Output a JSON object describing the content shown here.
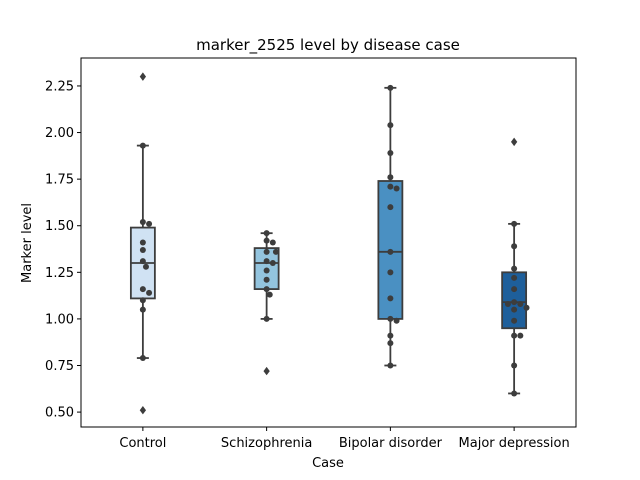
{
  "chart_data": {
    "type": "box",
    "title": "marker_2525 level by disease case",
    "xlabel": "Case",
    "ylabel": "Marker level",
    "ylim": [
      0.42,
      2.4
    ],
    "yticks": [
      "0.50",
      "0.75",
      "1.00",
      "1.25",
      "1.50",
      "1.75",
      "2.00",
      "2.25"
    ],
    "grid": false,
    "categories": [
      "Control",
      "Schizophrenia",
      "Bipolar disorder",
      "Major depression"
    ],
    "colors": [
      "#d0e2f3",
      "#93c4de",
      "#4a90c2",
      "#1e5f9b"
    ],
    "boxes": [
      {
        "q1": 1.11,
        "median": 1.3,
        "q3": 1.49,
        "whisker_low": 0.79,
        "whisker_high": 1.93,
        "outliers": [
          2.3,
          0.51
        ]
      },
      {
        "q1": 1.16,
        "median": 1.3,
        "q3": 1.38,
        "whisker_low": 1.0,
        "whisker_high": 1.46,
        "outliers": [
          0.72
        ]
      },
      {
        "q1": 1.0,
        "median": 1.36,
        "q3": 1.74,
        "whisker_low": 0.75,
        "whisker_high": 2.24,
        "outliers": []
      },
      {
        "q1": 0.95,
        "median": 1.09,
        "q3": 1.25,
        "whisker_low": 0.6,
        "whisker_high": 1.51,
        "outliers": [
          1.95
        ]
      }
    ],
    "points": [
      [
        1.93,
        1.52,
        1.51,
        1.41,
        1.37,
        1.31,
        1.28,
        1.16,
        1.14,
        1.1,
        1.05,
        0.79
      ],
      [
        1.46,
        1.42,
        1.41,
        1.36,
        1.36,
        1.31,
        1.3,
        1.26,
        1.21,
        1.16,
        1.13,
        1.0
      ],
      [
        2.24,
        2.04,
        1.89,
        1.76,
        1.71,
        1.7,
        1.6,
        1.36,
        1.25,
        1.11,
        1.0,
        0.99,
        0.91,
        0.87,
        0.75
      ],
      [
        1.51,
        1.39,
        1.27,
        1.22,
        1.16,
        1.09,
        1.08,
        1.08,
        1.06,
        1.05,
        0.99,
        0.91,
        0.91,
        0.75,
        0.6
      ]
    ]
  }
}
